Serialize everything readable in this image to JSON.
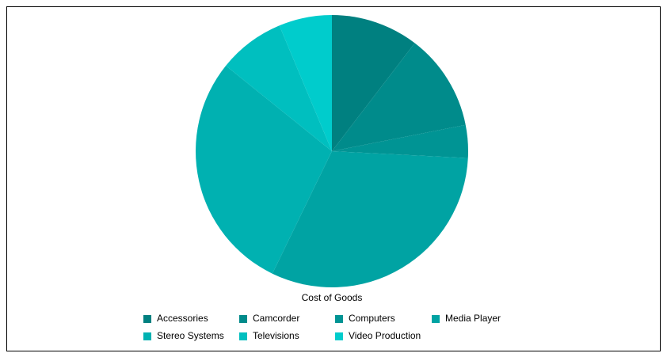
{
  "chart_data": {
    "type": "pie",
    "title": "Cost of Goods",
    "categories": [
      "Accessories",
      "Camcorder",
      "Computers",
      "Media Player",
      "Stereo Systems",
      "Televisions",
      "Video Production"
    ],
    "values": [
      10.4,
      11.5,
      3.9,
      31.4,
      28.6,
      7.9,
      6.3
    ],
    "colors": [
      "#008080",
      "#008b8b",
      "#009494",
      "#00a3a3",
      "#00b1b1",
      "#00bfbf",
      "#00cccc"
    ]
  }
}
